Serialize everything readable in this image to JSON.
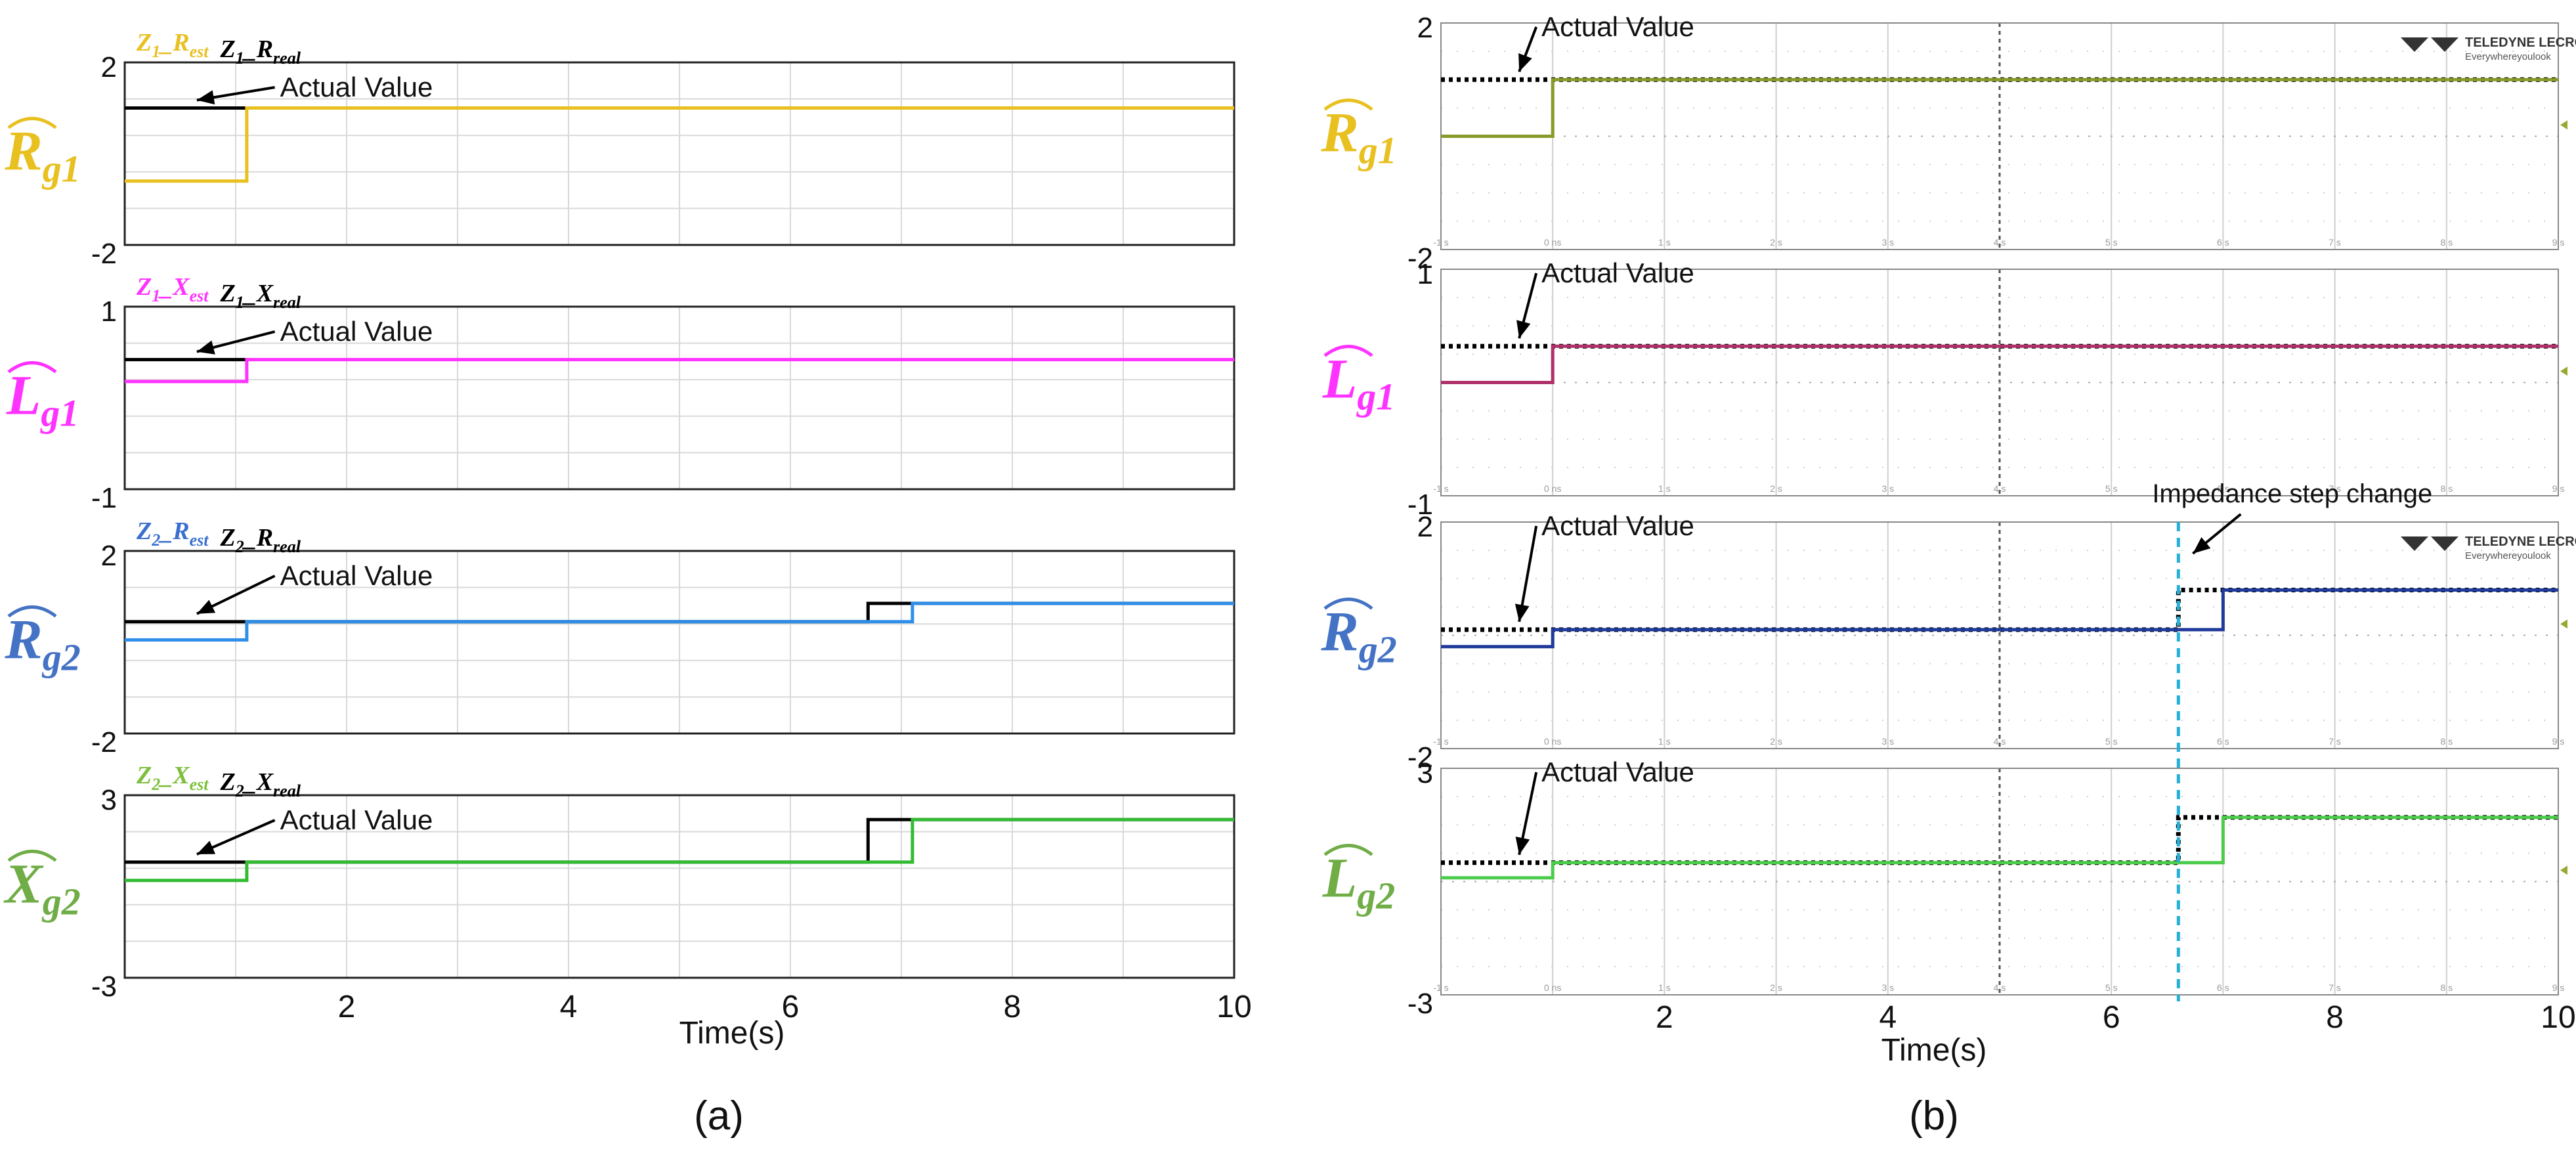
{
  "chart_data": [
    {
      "type": "line",
      "panel_label": "(a)",
      "xlabel": "Time(s)",
      "xlim": [
        0,
        10
      ],
      "xticks": [
        2,
        4,
        6,
        8,
        10
      ],
      "grid": true,
      "subplots": [
        {
          "row_label": {
            "base": "R",
            "sub": "g1"
          },
          "ylim": [
            -2,
            2
          ],
          "yticks": [
            "2",
            "-2"
          ],
          "legend": [
            {
              "base": "Z",
              "b_sub": "1",
              "suffix": "_R",
              "s_sub": "est",
              "color": "#e8c020"
            },
            {
              "base": "Z",
              "b_sub": "1",
              "suffix": "_R",
              "s_sub": "real",
              "color": "#000000"
            }
          ],
          "annotation": "Actual Value",
          "series": [
            {
              "color": "#000000",
              "x": [
                0,
                1.1
              ],
              "y": [
                1,
                1
              ]
            },
            {
              "color": "#e8c020",
              "x": [
                0,
                1.1,
                1.1,
                10
              ],
              "y": [
                -0.6,
                -0.6,
                1,
                1
              ]
            }
          ]
        },
        {
          "row_label": {
            "base": "L",
            "sub": "g1"
          },
          "ylim": [
            -1,
            1
          ],
          "yticks": [
            "1",
            "-1"
          ],
          "legend": [
            {
              "base": "Z",
              "b_sub": "1",
              "suffix": "_X",
              "s_sub": "est",
              "color": "#ff33ff"
            },
            {
              "base": "Z",
              "b_sub": "1",
              "suffix": "_X",
              "s_sub": "real",
              "color": "#000000"
            }
          ],
          "annotation": "Actual Value",
          "series": [
            {
              "color": "#000000",
              "x": [
                0,
                1.1
              ],
              "y": [
                0.42,
                0.42
              ]
            },
            {
              "color": "#ff33ff",
              "x": [
                0,
                1.1,
                1.1,
                10
              ],
              "y": [
                0.18,
                0.18,
                0.42,
                0.42
              ]
            }
          ]
        },
        {
          "row_label": {
            "base": "R",
            "sub": "g2"
          },
          "ylim": [
            -2,
            2
          ],
          "yticks": [
            "2",
            "-2"
          ],
          "legend": [
            {
              "base": "Z",
              "b_sub": "2",
              "suffix": "_R",
              "s_sub": "est",
              "color": "#3a6fd0"
            },
            {
              "base": "Z",
              "b_sub": "2",
              "suffix": "_R",
              "s_sub": "real",
              "color": "#000000"
            }
          ],
          "annotation": "Actual Value",
          "series": [
            {
              "color": "#000000",
              "x": [
                0,
                1.1,
                1.1,
                6.7,
                6.7,
                10
              ],
              "y": [
                0.45,
                0.45,
                0.45,
                0.45,
                0.85,
                0.85
              ]
            },
            {
              "color": "#2f8fe8",
              "x": [
                0,
                1.1,
                1.1,
                7.1,
                7.1,
                10
              ],
              "y": [
                0.05,
                0.05,
                0.45,
                0.45,
                0.85,
                0.85
              ]
            }
          ]
        },
        {
          "row_label": {
            "base": "X",
            "sub": "g2"
          },
          "ylim": [
            -3,
            3
          ],
          "yticks": [
            "3",
            "-3"
          ],
          "legend": [
            {
              "base": "Z",
              "b_sub": "2",
              "suffix": "_X",
              "s_sub": "est",
              "color": "#7cbf3c"
            },
            {
              "base": "Z",
              "b_sub": "2",
              "suffix": "_X",
              "s_sub": "real",
              "color": "#000000"
            }
          ],
          "annotation": "Actual Value",
          "series": [
            {
              "color": "#000000",
              "x": [
                0,
                1.1,
                1.1,
                6.7,
                6.7,
                10
              ],
              "y": [
                0.8,
                0.8,
                0.8,
                0.8,
                2.2,
                2.2
              ]
            },
            {
              "color": "#33bb33",
              "x": [
                0,
                1.1,
                1.1,
                7.1,
                7.1,
                10
              ],
              "y": [
                0.2,
                0.2,
                0.8,
                0.8,
                2.2,
                2.2
              ]
            }
          ]
        }
      ]
    },
    {
      "type": "line",
      "panel_label": "(b)",
      "xlabel": "Time(s)",
      "xlim": [
        -1,
        9
      ],
      "xticks_scope": [
        "-1 s",
        "0 ns",
        "1 s",
        "2 s",
        "3 s",
        "4 s",
        "5 s",
        "6 s",
        "7 s",
        "8 s",
        "9 s"
      ],
      "xticks_figure": [
        "2",
        "4",
        "6",
        "8",
        "10"
      ],
      "grid": true,
      "logo": {
        "brand": "TELEDYNE LECROY",
        "tagline": "Everywhereyoulook"
      },
      "event_annotation": {
        "text": "Impedance step change",
        "x": 5.6
      },
      "subplots": [
        {
          "row_label": {
            "base": "R",
            "sub": "g1"
          },
          "ylim": [
            -2,
            2
          ],
          "yticks": [
            "2",
            "-2"
          ],
          "annotation": "Actual Value",
          "show_logo": true,
          "series": [
            {
              "color": "#000000",
              "dotted": true,
              "x": [
                -1,
                9
              ],
              "y": [
                1,
                1
              ]
            },
            {
              "color": "#8a9a2a",
              "x": [
                -1,
                0,
                0,
                9
              ],
              "y": [
                0,
                0,
                1,
                1
              ]
            }
          ]
        },
        {
          "row_label": {
            "base": "L",
            "sub": "g1"
          },
          "ylim": [
            -1,
            1
          ],
          "yticks": [
            "1",
            "-1"
          ],
          "annotation": "Actual Value",
          "series": [
            {
              "color": "#000000",
              "dotted": true,
              "x": [
                -1,
                9
              ],
              "y": [
                0.32,
                0.32
              ]
            },
            {
              "color": "#b0306a",
              "x": [
                -1,
                0,
                0,
                9
              ],
              "y": [
                0.0,
                0.0,
                0.32,
                0.32
              ]
            }
          ]
        },
        {
          "row_label": {
            "base": "R",
            "sub": "g2"
          },
          "ylim": [
            -2,
            2
          ],
          "yticks": [
            "2",
            "-2"
          ],
          "annotation": "Actual Value",
          "show_logo": true,
          "series": [
            {
              "color": "#000000",
              "dotted": true,
              "x": [
                -1,
                5.6,
                5.6,
                9
              ],
              "y": [
                0.1,
                0.1,
                0.8,
                0.8
              ]
            },
            {
              "color": "#1f3a9a",
              "x": [
                -1,
                0,
                0,
                6,
                6,
                9
              ],
              "y": [
                -0.2,
                -0.2,
                0.1,
                0.1,
                0.8,
                0.8
              ]
            }
          ]
        },
        {
          "row_label": {
            "base": "L",
            "sub": "g2"
          },
          "ylim": [
            -3,
            3
          ],
          "yticks": [
            "3",
            "-3"
          ],
          "annotation": "Actual Value",
          "series": [
            {
              "color": "#000000",
              "dotted": true,
              "x": [
                -1,
                5.6,
                5.6,
                9
              ],
              "y": [
                0.5,
                0.5,
                1.7,
                1.7
              ]
            },
            {
              "color": "#4ccc4c",
              "x": [
                -1,
                0,
                0,
                6,
                6,
                9
              ],
              "y": [
                0.1,
                0.1,
                0.5,
                0.5,
                1.7,
                1.7
              ]
            }
          ]
        }
      ]
    }
  ]
}
